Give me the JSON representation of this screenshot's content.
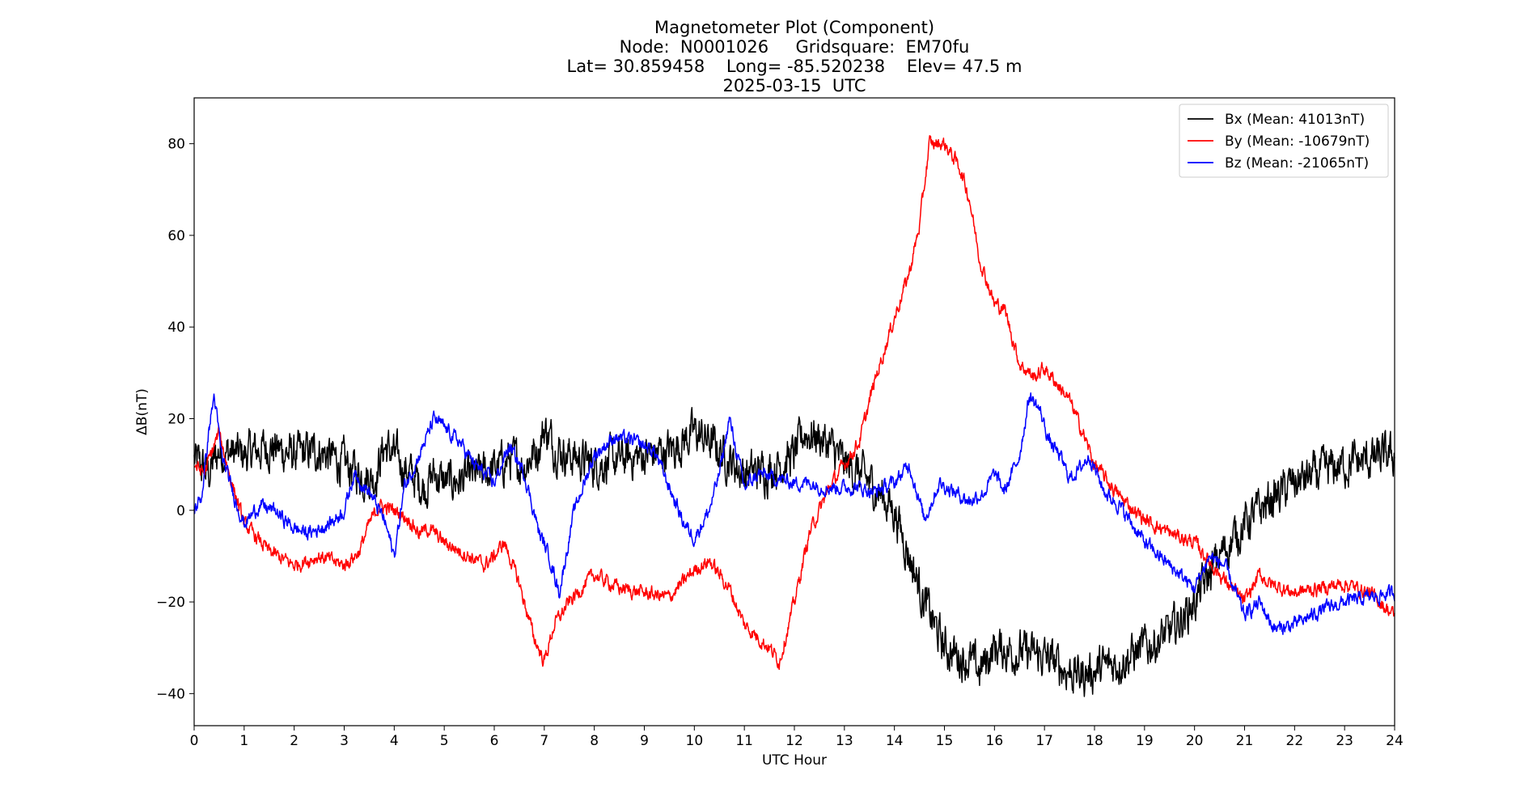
{
  "chart_data": {
    "type": "line",
    "title_lines": [
      "Magnetometer Plot (Component)",
      "Node:  N0001026     Gridsquare:  EM70fu",
      "Lat= 30.859458    Long= -85.520238    Elev= 47.5 m",
      "2025-03-15  UTC"
    ],
    "xlabel": "UTC Hour",
    "ylabel": "ΔB(nT)",
    "xlim": [
      0,
      24
    ],
    "ylim": [
      -47,
      90
    ],
    "xticks": [
      0,
      1,
      2,
      3,
      4,
      5,
      6,
      7,
      8,
      9,
      10,
      11,
      12,
      13,
      14,
      15,
      16,
      17,
      18,
      19,
      20,
      21,
      22,
      23,
      24
    ],
    "yticks": [
      -40,
      -20,
      0,
      20,
      40,
      60,
      80
    ],
    "ytick_labels": [
      "−40",
      "−20",
      "0",
      "20",
      "40",
      "60",
      "80"
    ],
    "grid": false,
    "legend_position": "top-right",
    "series": [
      {
        "name": "Bx (Mean: 41013nT)",
        "color": "#000000",
        "noise": 3.5,
        "x": [
          0,
          0.3,
          0.5,
          1,
          1.5,
          2,
          2.5,
          3,
          3.3,
          3.6,
          3.8,
          4,
          4.3,
          4.6,
          4.8,
          5,
          5.5,
          6,
          6.3,
          6.6,
          6.9,
          7,
          7.2,
          7.5,
          8,
          8.5,
          9,
          9.5,
          10,
          10.3,
          10.6,
          11,
          11.5,
          12,
          12.2,
          12.5,
          12.8,
          13,
          13.3,
          13.6,
          14,
          14.3,
          14.6,
          15,
          15.5,
          15.7,
          16,
          16.5,
          17,
          17.3,
          17.7,
          18,
          18.5,
          19,
          19.5,
          20,
          20.5,
          21,
          21.5,
          22,
          22.5,
          23,
          23.5,
          24
        ],
        "y": [
          11,
          8,
          13,
          12,
          14,
          12,
          13,
          10,
          8,
          7,
          14,
          12,
          8,
          5,
          8,
          6,
          7,
          9,
          11,
          10,
          14,
          18,
          14,
          12,
          10,
          11,
          12,
          13,
          17,
          15,
          12,
          8,
          9,
          12,
          17,
          16,
          13,
          10,
          8,
          5,
          0,
          -10,
          -20,
          -30,
          -33,
          -35,
          -30,
          -31,
          -32,
          -34,
          -36,
          -35,
          -33,
          -30,
          -27,
          -20,
          -10,
          -3,
          2,
          6,
          8,
          10,
          11,
          12
        ]
      },
      {
        "name": "By (Mean: -10679nT)",
        "color": "#ff0000",
        "noise": 1.2,
        "x": [
          0,
          0.2,
          0.5,
          0.7,
          1,
          1.5,
          2,
          2.5,
          3,
          3.3,
          3.5,
          3.7,
          4,
          4.3,
          4.5,
          4.7,
          5,
          5.5,
          5.8,
          6,
          6.2,
          6.5,
          6.8,
          7,
          7.2,
          7.5,
          8,
          8.5,
          9,
          9.5,
          10,
          10.3,
          10.7,
          11,
          11.5,
          11.7,
          12,
          12.3,
          12.7,
          13,
          13.3,
          13.6,
          14,
          14.3,
          14.5,
          14.7,
          15,
          15.3,
          15.5,
          15.7,
          16,
          16.2,
          16.5,
          16.8,
          17,
          17.3,
          17.5,
          17.8,
          18,
          18.5,
          19,
          19.5,
          20,
          20.5,
          21,
          21.3,
          21.5,
          22,
          22.5,
          23,
          23.5,
          24
        ],
        "y": [
          10,
          8,
          17,
          8,
          -3,
          -9,
          -12,
          -10,
          -12,
          -9,
          -3,
          1,
          0,
          -2,
          -5,
          -4,
          -7,
          -10,
          -12,
          -10,
          -7,
          -16,
          -28,
          -33,
          -25,
          -20,
          -14,
          -17,
          -18,
          -19,
          -13,
          -11,
          -17,
          -25,
          -30,
          -33,
          -20,
          -5,
          5,
          10,
          15,
          28,
          42,
          52,
          62,
          80,
          80,
          75,
          68,
          55,
          45,
          44,
          32,
          29,
          31,
          27,
          24,
          16,
          10,
          3,
          -2,
          -5,
          -7,
          -14,
          -20,
          -14,
          -16,
          -18,
          -17,
          -16,
          -18,
          -23
        ]
      },
      {
        "name": "Bz (Mean: -21065nT)",
        "color": "#0000ff",
        "noise": 1.2,
        "x": [
          0,
          0.15,
          0.3,
          0.4,
          0.55,
          0.8,
          1,
          1.3,
          1.6,
          2,
          2.3,
          2.7,
          3,
          3.2,
          3.5,
          3.8,
          4,
          4.2,
          4.5,
          4.8,
          5,
          5.3,
          5.6,
          6,
          6.3,
          6.6,
          6.9,
          7.1,
          7.3,
          7.6,
          8,
          8.4,
          8.8,
          9.2,
          9.5,
          9.8,
          10,
          10.3,
          10.5,
          10.7,
          11,
          11.3,
          11.6,
          12,
          12.3,
          12.6,
          13,
          13.3,
          13.6,
          14,
          14.3,
          14.6,
          14.9,
          15.2,
          15.5,
          15.8,
          16,
          16.2,
          16.5,
          16.7,
          16.9,
          17.1,
          17.3,
          17.5,
          17.7,
          17.9,
          18.2,
          18.5,
          19,
          19.5,
          20,
          20.3,
          20.6,
          21,
          21.3,
          21.6,
          22,
          22.5,
          23,
          23.5,
          24
        ],
        "y": [
          0,
          3,
          18,
          25,
          12,
          3,
          -3,
          1,
          0,
          -4,
          -5,
          -3,
          0,
          8,
          4,
          -2,
          -10,
          5,
          12,
          20,
          18,
          15,
          10,
          6,
          14,
          8,
          -5,
          -10,
          -18,
          0,
          12,
          16,
          15,
          13,
          5,
          -3,
          -6,
          0,
          8,
          20,
          5,
          8,
          7,
          6,
          6,
          5,
          5,
          5,
          4,
          6,
          10,
          -2,
          6,
          4,
          2,
          4,
          8,
          4,
          12,
          25,
          22,
          15,
          12,
          7,
          9,
          12,
          4,
          1,
          -7,
          -12,
          -17,
          -10,
          -12,
          -23,
          -20,
          -26,
          -25,
          -22,
          -20,
          -19,
          -18
        ]
      }
    ]
  }
}
